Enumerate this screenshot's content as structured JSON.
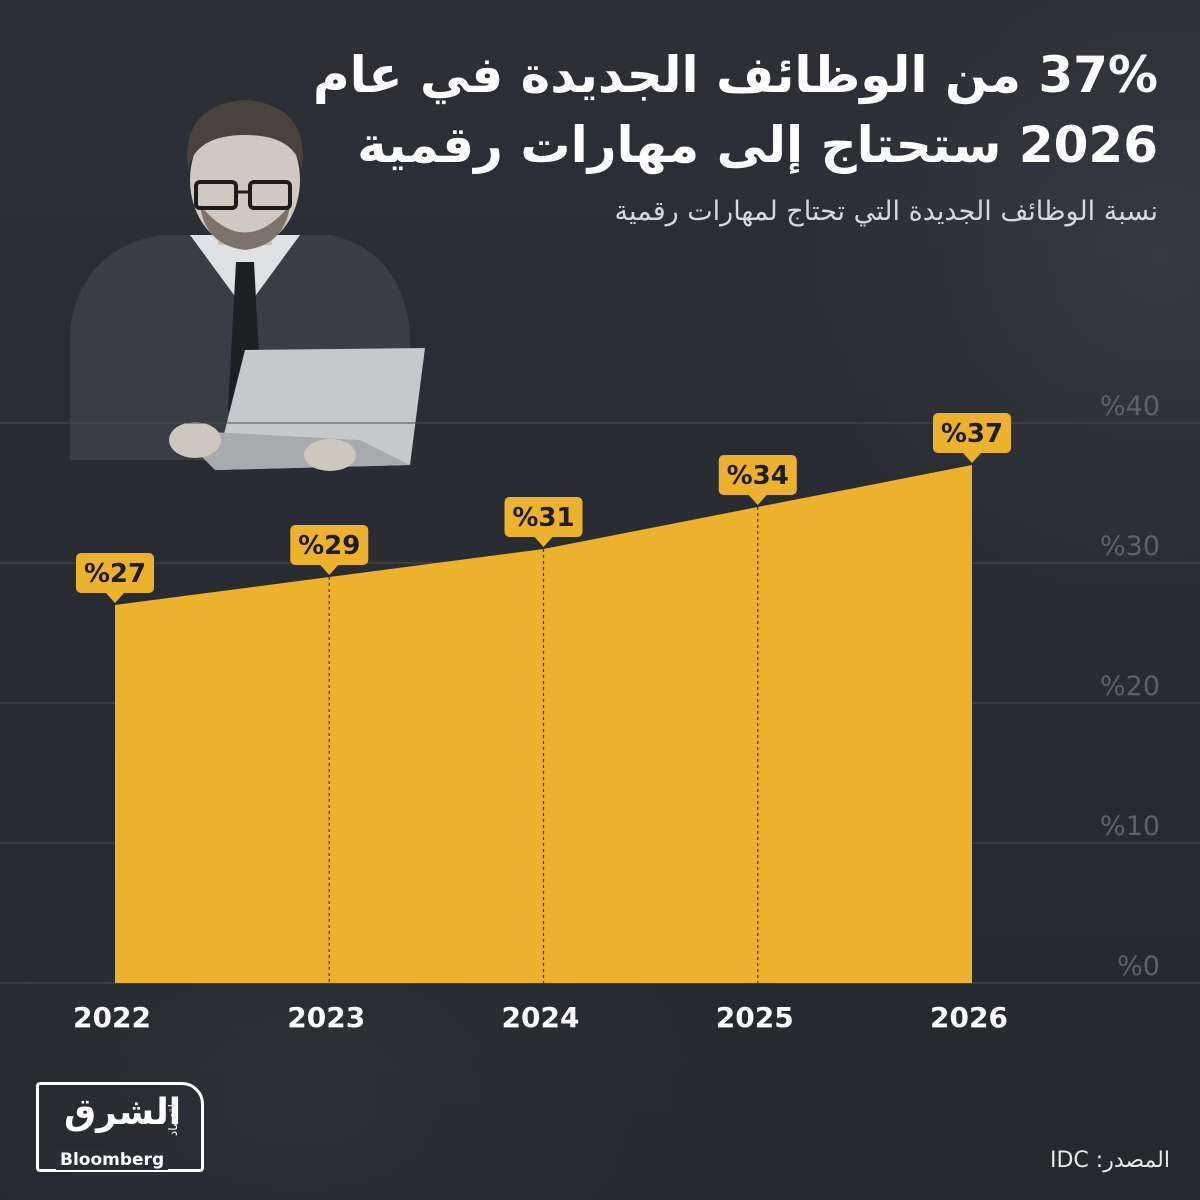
{
  "title": "37% من الوظائف الجديدة في عام 2026 ستحتاج إلى مهارات رقمية",
  "subtitle": "نسبة الوظائف الجديدة التي تحتاج لمهارات رقمية",
  "source": "المصدر: IDC",
  "logo": {
    "main": "الشرق",
    "sub": "اقتصاد",
    "brand": "Bloomberg"
  },
  "colors": {
    "background": "#2a2d33",
    "area": "#ecb22e",
    "gridline": "#4a4d53",
    "tick_label": "#5e6168",
    "label_text": "#1e1e1e"
  },
  "chart_data": {
    "type": "area",
    "categories": [
      "2022",
      "2023",
      "2024",
      "2025",
      "2026"
    ],
    "values": [
      27,
      29,
      31,
      34,
      37
    ],
    "data_labels": [
      "%27",
      "%29",
      "%31",
      "%34",
      "%37"
    ],
    "y_ticks": [
      0,
      10,
      20,
      30,
      40
    ],
    "y_tick_labels": [
      "%0",
      "%10",
      "%20",
      "%30",
      "%40"
    ],
    "ylim": [
      0,
      40
    ],
    "y_axis_position": "right",
    "grid": true
  }
}
